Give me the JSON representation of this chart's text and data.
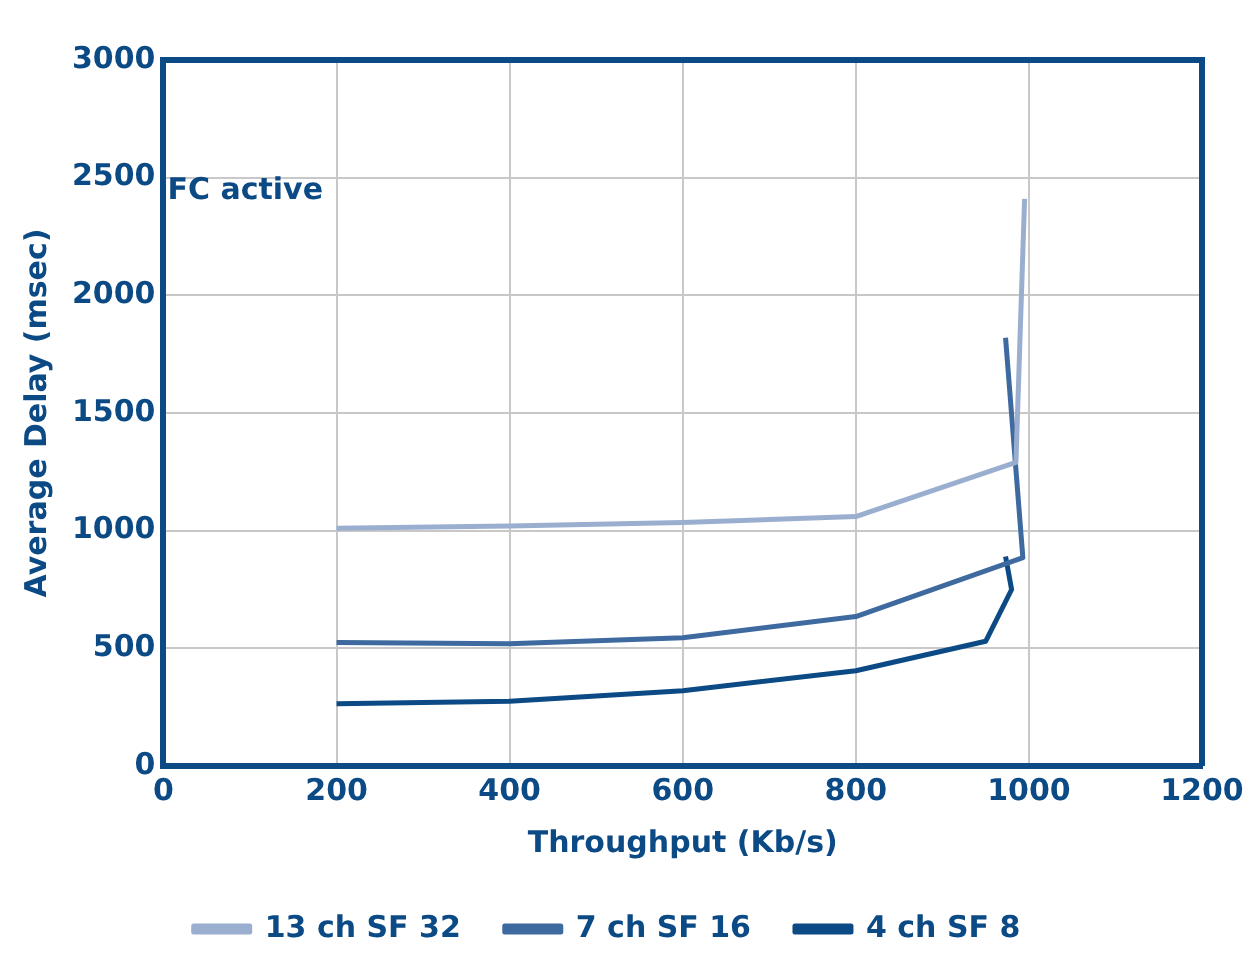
{
  "chart_data": {
    "type": "line",
    "xlabel": "Throughput (Kb/s)",
    "ylabel": "Average Delay (msec)",
    "xlim": [
      0,
      1200
    ],
    "xticks": [
      0,
      200,
      400,
      600,
      800,
      1000,
      1200
    ],
    "ylim": [
      0,
      3000
    ],
    "yticks": [
      0,
      500,
      1000,
      1500,
      2000,
      2500,
      3000
    ],
    "grid": true,
    "legend": "bottom",
    "marker": "none",
    "line_style": "solid",
    "annotations": [
      "FC active"
    ],
    "series": [
      {
        "name": "13 ch SF 32",
        "color": "#9aafd0",
        "x": [
          200,
          400,
          600,
          800,
          985,
          995
        ],
        "values": [
          1010,
          1020,
          1035,
          1060,
          1290,
          2410
        ]
      },
      {
        "name": "7 ch SF 16",
        "color": "#3e6aa0",
        "x": [
          200,
          400,
          600,
          800,
          993,
          973
        ],
        "values": [
          525,
          520,
          545,
          635,
          885,
          1820
        ]
      },
      {
        "name": "4 ch SF 8",
        "color": "#0b4a85",
        "x": [
          200,
          400,
          600,
          800,
          950,
          980,
          973
        ],
        "values": [
          265,
          275,
          320,
          405,
          530,
          750,
          890
        ]
      }
    ]
  }
}
